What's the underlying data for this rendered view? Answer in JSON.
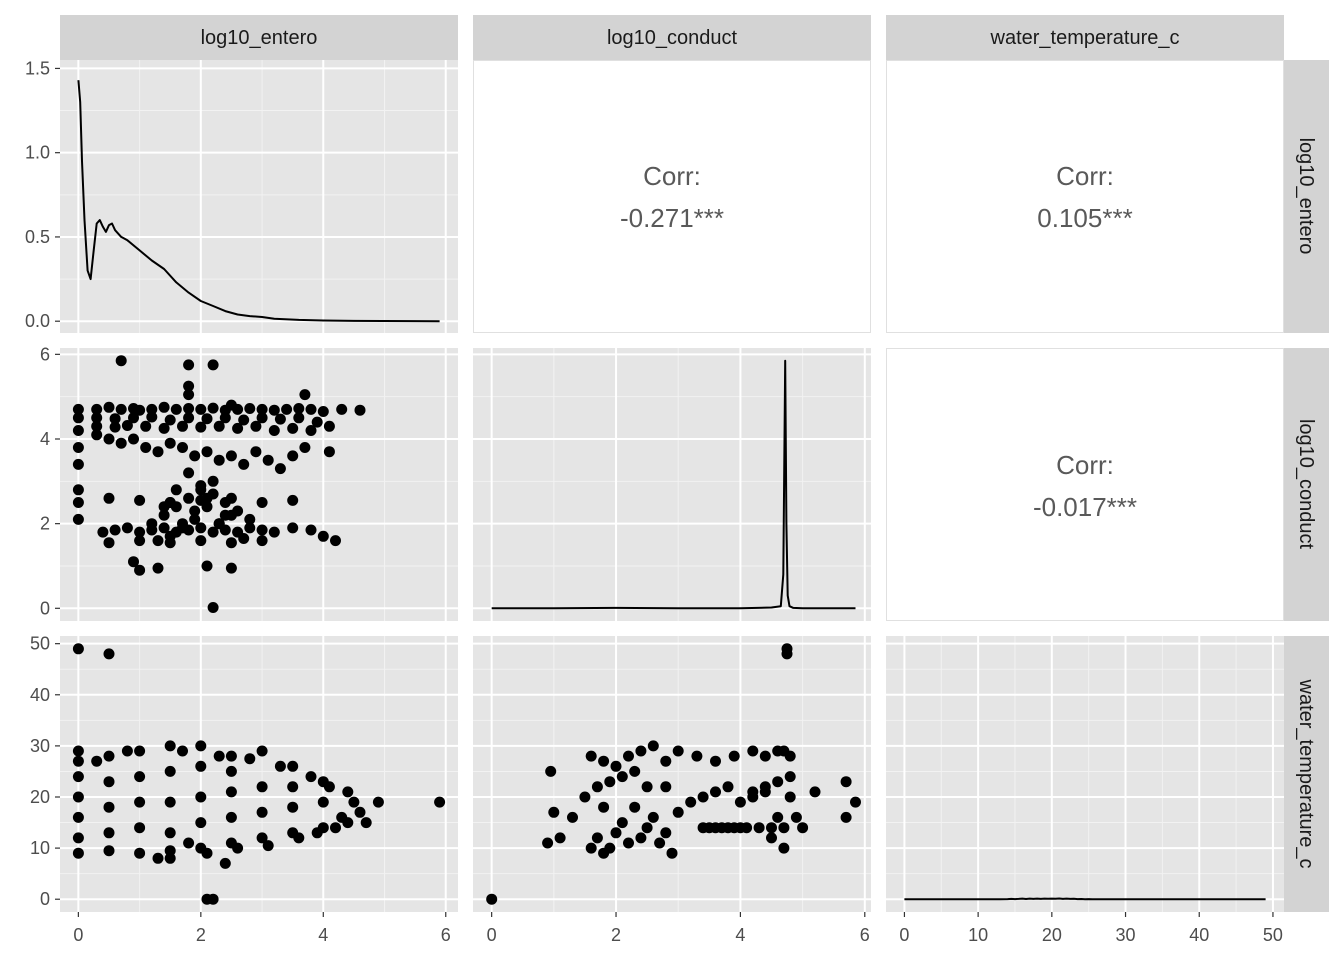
{
  "chart_data": {
    "type": "scatter",
    "layout": "pairs-matrix",
    "variables": [
      "log10_entero",
      "log10_conduct",
      "water_temperature_c"
    ],
    "panel_background": "#E5E5E5",
    "strip_background": "#D3D3D3",
    "grid": true,
    "point_color": "#000000",
    "x_axes": [
      {
        "ticks": [
          0,
          2,
          4,
          6
        ],
        "labels": [
          "0",
          "2",
          "4",
          "6"
        ],
        "range": [
          -0.3,
          6.2
        ]
      },
      {
        "ticks": [
          0,
          2,
          4,
          6
        ],
        "labels": [
          "0",
          "2",
          "4",
          "6"
        ],
        "range": [
          -0.3,
          6.1
        ]
      },
      {
        "ticks": [
          0,
          10,
          20,
          30,
          40,
          50
        ],
        "labels": [
          "0",
          "10",
          "20",
          "30",
          "40",
          "50"
        ],
        "range": [
          -2.5,
          51.5
        ]
      }
    ],
    "y_axes": [
      {
        "ticks": [
          0.0,
          0.5,
          1.0,
          1.5
        ],
        "labels": [
          "0.0",
          "0.5",
          "1.0",
          "1.5"
        ],
        "range": [
          -0.07,
          1.55
        ]
      },
      {
        "ticks": [
          0,
          2,
          4,
          6
        ],
        "labels": [
          "0",
          "2",
          "4",
          "6"
        ],
        "range": [
          -0.3,
          6.15
        ]
      },
      {
        "ticks": [
          0,
          10,
          20,
          30,
          40,
          50
        ],
        "labels": [
          "0",
          "10",
          "20",
          "30",
          "40",
          "50"
        ],
        "range": [
          -2.5,
          51.5
        ]
      }
    ],
    "density": {
      "log10_entero": {
        "x": [
          0.0,
          0.03,
          0.06,
          0.1,
          0.15,
          0.2,
          0.25,
          0.3,
          0.35,
          0.4,
          0.45,
          0.5,
          0.55,
          0.6,
          0.7,
          0.8,
          1.0,
          1.2,
          1.4,
          1.6,
          1.8,
          2.0,
          2.2,
          2.4,
          2.6,
          2.8,
          3.0,
          3.2,
          3.6,
          4.0,
          4.5,
          5.0,
          5.5,
          5.9
        ],
        "y": [
          1.43,
          1.3,
          0.95,
          0.6,
          0.3,
          0.25,
          0.42,
          0.58,
          0.6,
          0.56,
          0.53,
          0.57,
          0.58,
          0.54,
          0.5,
          0.48,
          0.42,
          0.36,
          0.31,
          0.23,
          0.17,
          0.12,
          0.09,
          0.06,
          0.04,
          0.03,
          0.025,
          0.015,
          0.008,
          0.004,
          0.002,
          0.001,
          0.0005,
          0.0
        ]
      },
      "log10_conduct": {
        "x": [
          0.0,
          1.0,
          2.0,
          3.0,
          4.0,
          4.5,
          4.65,
          4.69,
          4.72,
          4.74,
          4.76,
          4.79,
          4.85,
          5.0,
          5.5,
          5.85
        ],
        "y": [
          0.0,
          0.0,
          0.01,
          0.0,
          0.0,
          0.02,
          0.05,
          0.8,
          5.85,
          2.0,
          0.3,
          0.05,
          0.01,
          0.0,
          0.0,
          0.0
        ]
      },
      "water_temperature_c": {
        "x": [
          0.0,
          8.0,
          10.0,
          12.0,
          13.0,
          14.0,
          14.5,
          15.0,
          15.5,
          16.0,
          16.5,
          17.0,
          17.5,
          18.0,
          18.5,
          19.0,
          19.5,
          20.0,
          20.5,
          21.0,
          21.5,
          22.0,
          22.5,
          23.0,
          23.5,
          24.0,
          24.5,
          25.0,
          25.5,
          26.0,
          27.0,
          28.0,
          30.0,
          35.0,
          40.0,
          45.0,
          49.0
        ],
        "y": [
          0.0,
          0.0,
          0.002,
          0.005,
          0.012,
          0.03,
          0.065,
          0.025,
          0.06,
          0.12,
          0.04,
          0.126,
          0.06,
          0.12,
          0.07,
          0.122,
          0.08,
          0.127,
          0.085,
          0.14,
          0.06,
          0.126,
          0.06,
          0.083,
          0.02,
          0.05,
          0.01,
          0.025,
          0.005,
          0.01,
          0.002,
          0.001,
          0.0,
          0.0,
          0.0,
          0.0,
          0.0
        ]
      }
    },
    "correlations": [
      {
        "row": "log10_entero",
        "col": "log10_conduct",
        "label": "Corr:",
        "value": "-0.271***"
      },
      {
        "row": "log10_entero",
        "col": "water_temperature_c",
        "label": "Corr:",
        "value": "0.105***"
      },
      {
        "row": "log10_conduct",
        "col": "water_temperature_c",
        "label": "Corr:",
        "value": "-0.017***"
      }
    ],
    "scatter": {
      "entero_vs_conduct": {
        "x": [
          0.0,
          0.0,
          0.0,
          0.0,
          0.0,
          0.0,
          0.0,
          0.0,
          0.3,
          0.5,
          0.7,
          0.9,
          1.0,
          1.2,
          1.4,
          1.6,
          1.8,
          2.0,
          2.2,
          2.4,
          2.6,
          2.8,
          3.0,
          3.2,
          3.4,
          3.6,
          3.8,
          4.0,
          0.3,
          0.6,
          0.9,
          1.2,
          1.5,
          1.8,
          2.1,
          2.4,
          2.7,
          3.0,
          3.3,
          3.6,
          3.9,
          4.1,
          4.3,
          4.6,
          0.3,
          0.6,
          0.8,
          1.1,
          1.4,
          1.7,
          2.0,
          2.3,
          2.6,
          2.9,
          3.2,
          3.5,
          3.8,
          0.3,
          0.5,
          0.7,
          0.9,
          1.1,
          1.3,
          1.5,
          1.7,
          1.9,
          2.1,
          2.3,
          2.5,
          2.7,
          2.9,
          3.1,
          3.3,
          3.5,
          3.7,
          4.1,
          0.4,
          0.6,
          0.8,
          1.0,
          1.2,
          1.4,
          1.6,
          1.8,
          2.0,
          2.2,
          2.4,
          2.6,
          2.8,
          3.0,
          3.2,
          3.5,
          3.8,
          4.0,
          4.2,
          1.2,
          1.4,
          1.6,
          1.8,
          2.0,
          2.2,
          2.4,
          2.6,
          2.8,
          1.3,
          1.5,
          1.7,
          1.9,
          2.1,
          2.3,
          2.5,
          2.7,
          1.4,
          1.6,
          1.8,
          2.0,
          2.2,
          2.4,
          1.5,
          1.7,
          1.9,
          2.1,
          2.3,
          0.9,
          1.0,
          1.3,
          2.1,
          2.5,
          2.2,
          0.7,
          1.8,
          1.8,
          2.2,
          1.8,
          3.7,
          2.5,
          0.5,
          1.0,
          1.5,
          2.0,
          2.5,
          3.0,
          3.5,
          0.5,
          1.0,
          1.5,
          2.0,
          2.5,
          3.0
        ],
        "y": [
          2.1,
          2.5,
          2.8,
          3.4,
          3.8,
          4.2,
          4.5,
          4.7,
          4.7,
          4.75,
          4.7,
          4.72,
          4.68,
          4.7,
          4.75,
          4.7,
          4.72,
          4.7,
          4.73,
          4.68,
          4.7,
          4.72,
          4.7,
          4.68,
          4.7,
          4.72,
          4.7,
          4.65,
          4.5,
          4.48,
          4.5,
          4.52,
          4.45,
          4.5,
          4.48,
          4.5,
          4.45,
          4.5,
          4.47,
          4.5,
          4.4,
          4.3,
          4.7,
          4.68,
          4.3,
          4.28,
          4.32,
          4.3,
          4.25,
          4.3,
          4.28,
          4.3,
          4.25,
          4.3,
          4.2,
          4.25,
          4.2,
          4.1,
          4.0,
          3.9,
          4.0,
          3.8,
          3.7,
          3.9,
          3.8,
          3.6,
          3.7,
          3.5,
          3.6,
          3.4,
          3.7,
          3.5,
          3.3,
          3.6,
          3.8,
          3.7,
          1.8,
          1.85,
          1.9,
          1.8,
          1.85,
          1.9,
          1.8,
          1.85,
          1.9,
          1.8,
          1.85,
          1.8,
          1.9,
          1.85,
          1.8,
          1.9,
          1.85,
          1.7,
          1.6,
          2.0,
          2.2,
          2.4,
          2.6,
          2.8,
          3.0,
          2.5,
          2.3,
          2.1,
          1.6,
          1.7,
          2.0,
          2.3,
          2.6,
          2.0,
          2.2,
          1.65,
          2.4,
          2.8,
          3.2,
          2.9,
          2.7,
          2.2,
          2.5,
          1.9,
          2.1,
          2.4,
          2.0,
          1.1,
          0.9,
          0.95,
          1.0,
          0.95,
          0.02,
          5.85,
          5.75,
          5.25,
          5.75,
          5.05,
          5.05,
          4.8,
          2.6,
          2.55,
          2.5,
          2.55,
          2.6,
          2.5,
          2.55,
          1.55,
          1.6,
          1.55,
          1.6,
          1.55,
          1.6
        ]
      },
      "entero_vs_temp": {
        "x": [
          0.0,
          0.0,
          0.0,
          0.0,
          0.0,
          0.0,
          0.0,
          0.5,
          0.5,
          0.5,
          0.5,
          0.5,
          1.0,
          1.0,
          1.0,
          1.0,
          1.0,
          1.5,
          1.5,
          1.5,
          1.5,
          1.5,
          2.0,
          2.0,
          2.0,
          2.0,
          2.0,
          2.5,
          2.5,
          2.5,
          2.5,
          2.5,
          3.0,
          3.0,
          3.0,
          3.0,
          3.5,
          3.5,
          3.5,
          3.5,
          4.0,
          4.0,
          4.0,
          4.3,
          4.5,
          4.7,
          4.9,
          4.2,
          4.4,
          4.6,
          3.8,
          4.1,
          5.9,
          0.5,
          0.0,
          2.1,
          2.2,
          2.4,
          1.8,
          2.1,
          1.3,
          1.5,
          2.6,
          3.1,
          3.6,
          3.9,
          4.4,
          0.3,
          0.8,
          1.7,
          2.3,
          2.8,
          3.3
        ],
        "y": [
          9.0,
          12.0,
          16.0,
          20.0,
          24.0,
          27.0,
          29.0,
          9.5,
          13.0,
          18.0,
          23.0,
          28.0,
          9.0,
          14.0,
          19.0,
          24.0,
          29.0,
          8.0,
          13.0,
          19.0,
          25.0,
          30.0,
          10.0,
          15.0,
          20.0,
          26.0,
          30.0,
          11.0,
          16.0,
          21.0,
          25.0,
          28.0,
          12.0,
          17.0,
          22.0,
          29.0,
          13.0,
          18.0,
          22.0,
          26.0,
          14.0,
          19.0,
          23.0,
          16.0,
          19.0,
          15.0,
          19.0,
          14.0,
          21.0,
          17.0,
          24.0,
          22.0,
          19.0,
          48.0,
          49.0,
          0.0,
          0.0,
          7.0,
          11.0,
          9.0,
          8.0,
          9.5,
          10.0,
          10.5,
          12.0,
          13.0,
          15.0,
          27.0,
          29.0,
          29.0,
          28.0,
          27.5,
          26.0
        ]
      },
      "conduct_vs_temp": {
        "x": [
          0.0,
          0.9,
          0.95,
          1.0,
          1.1,
          1.3,
          1.5,
          1.6,
          1.7,
          1.8,
          1.9,
          2.0,
          2.1,
          2.2,
          2.3,
          2.4,
          2.5,
          2.6,
          2.7,
          2.8,
          2.9,
          3.0,
          3.2,
          3.4,
          3.6,
          3.8,
          4.0,
          4.2,
          4.4,
          4.5,
          4.6,
          4.7,
          4.8,
          4.9,
          5.0,
          5.2,
          5.7,
          5.7,
          5.85,
          4.75,
          4.75,
          1.6,
          1.8,
          2.0,
          2.2,
          2.4,
          2.6,
          2.8,
          3.0,
          3.3,
          3.6,
          3.9,
          4.2,
          4.4,
          4.6,
          4.7,
          4.8,
          1.7,
          1.9,
          2.1,
          2.3,
          2.5,
          3.4,
          3.5,
          3.6,
          3.7,
          3.8,
          3.9,
          4.0,
          4.1,
          4.3,
          4.5,
          4.7,
          4.2,
          4.4,
          4.6,
          4.8,
          2.8,
          1.8
        ],
        "y": [
          0.0,
          11.0,
          25.0,
          17.0,
          12.0,
          16.0,
          20.0,
          10.0,
          12.0,
          9.0,
          10.0,
          13.0,
          15.0,
          11.0,
          18.0,
          12.0,
          14.0,
          16.0,
          11.0,
          13.0,
          9.0,
          17.0,
          19.0,
          20.0,
          21.0,
          22.0,
          19.0,
          20.0,
          21.0,
          12.0,
          16.0,
          10.0,
          20.0,
          16.0,
          14.0,
          21.0,
          23.0,
          16.0,
          19.0,
          48.0,
          49.0,
          28.0,
          27.0,
          26.0,
          28.0,
          29.0,
          30.0,
          27.0,
          29.0,
          28.0,
          27.0,
          28.0,
          29.0,
          28.0,
          29.0,
          29.0,
          28.0,
          22.0,
          23.0,
          24.0,
          25.0,
          22.0,
          14.0,
          14.0,
          14.0,
          14.0,
          14.0,
          14.0,
          14.0,
          14.0,
          14.0,
          14.0,
          14.0,
          21.0,
          22.0,
          23.0,
          24.0,
          22.0,
          18.0
        ]
      }
    }
  }
}
